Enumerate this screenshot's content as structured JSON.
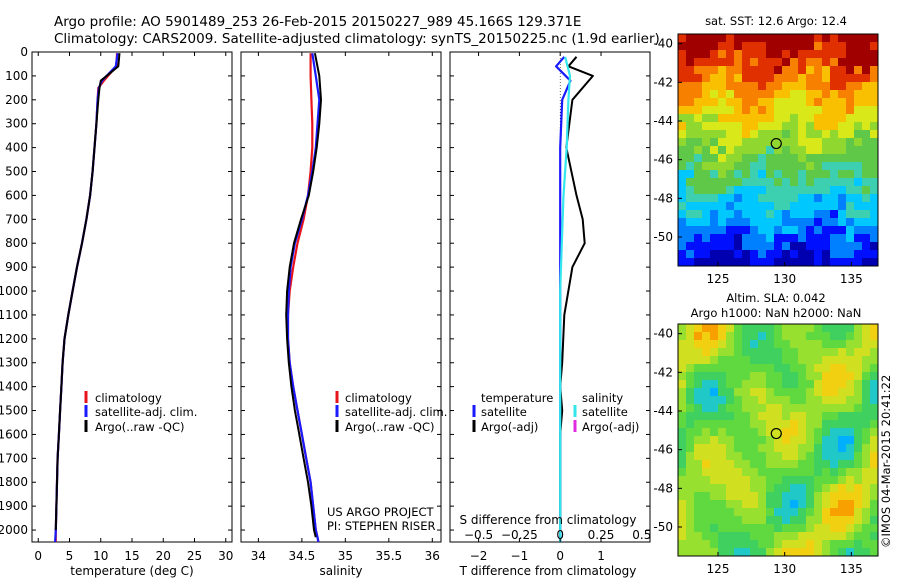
{
  "header": {
    "line1": "Argo profile: AO 5901489_253 26-Feb-2015 20150227_989 45.166S 129.371E",
    "line2": "Climatology: CARS2009. Satellite-adjusted climatology: synTS_20150225.nc (1.9d earlier)"
  },
  "credit": {
    "project": "US ARGO PROJECT",
    "pi": "PI: STEPHEN RISER",
    "stamp": "©IMOS 04-Mar-2015 20:41:22"
  },
  "colors": {
    "climatology": "#e8141c",
    "satellite": "#1a1aff",
    "argo": "#000000",
    "salinity_satellite": "#33e6ee",
    "salinity_argo": "#e02de0"
  },
  "legend_profile": {
    "items": [
      {
        "label": "climatology",
        "color_key": "climatology"
      },
      {
        "label": "satellite-adj. clim.",
        "color_key": "satellite"
      },
      {
        "label": "Argo(..raw -QC)",
        "color_key": "argo"
      }
    ]
  },
  "legend_diff": {
    "temperature_header": "temperature",
    "salinity_header": "salinity",
    "temperature_items": [
      {
        "label": "satellite",
        "color_key": "satellite"
      },
      {
        "label": "Argo(-adj)",
        "color_key": "argo"
      }
    ],
    "salinity_items": [
      {
        "label": "satellite",
        "color_key": "salinity_satellite"
      },
      {
        "label": "Argo(-adj)",
        "color_key": "salinity_argo"
      }
    ]
  },
  "maps": {
    "sst_title": "sat. SST: 12.6 Argo: 12.4",
    "sla_title1": "Altim. SLA: 0.042",
    "sla_title2": "Argo h1000: NaN h2000: NaN",
    "lat_ticks": [
      -40,
      -42,
      -44,
      -46,
      -48,
      -50
    ],
    "lon_ticks": [
      125,
      130,
      135
    ],
    "lon_range": [
      122,
      137
    ],
    "lat_range": [
      -51.5,
      -39.5
    ],
    "argo_position": {
      "lon": 129.371,
      "lat": -45.166
    }
  },
  "chart_data": [
    {
      "type": "line",
      "panel": "temperature",
      "xlabel": "temperature (deg C)",
      "ylabel": "",
      "xlim": [
        -1,
        31
      ],
      "ylim": [
        2050,
        0
      ],
      "xticks": [
        0,
        5,
        10,
        15,
        20,
        25,
        30
      ],
      "yticks": [
        0,
        100,
        200,
        300,
        400,
        500,
        600,
        700,
        800,
        900,
        1000,
        1100,
        1200,
        1300,
        1400,
        1500,
        1600,
        1700,
        1800,
        1900,
        2000
      ],
      "series": [
        {
          "name": "climatology",
          "color_key": "climatology",
          "x": [
            12.6,
            12.5,
            10.5,
            9.6,
            9.5,
            9.3,
            9.0,
            8.7,
            8.3,
            7.7,
            7.0,
            6.2,
            5.5,
            4.8,
            4.2,
            3.9,
            3.7,
            3.5,
            3.3,
            3.1,
            3.0,
            2.9,
            2.8,
            2.8
          ],
          "y": [
            5,
            60,
            120,
            150,
            200,
            300,
            400,
            500,
            600,
            700,
            800,
            900,
            1000,
            1100,
            1200,
            1300,
            1400,
            1500,
            1600,
            1700,
            1800,
            1900,
            2000,
            2050
          ]
        },
        {
          "name": "satellite-adj. clim.",
          "color_key": "satellite",
          "x": [
            12.7,
            12.4,
            10.2,
            9.7,
            9.5,
            9.3,
            9.0,
            8.7,
            8.3,
            7.7,
            7.0,
            6.2,
            5.5,
            4.8,
            4.2,
            3.9,
            3.7,
            3.5,
            3.3,
            3.1,
            3.0,
            2.9,
            2.8,
            2.7
          ],
          "y": [
            5,
            60,
            120,
            150,
            200,
            300,
            400,
            500,
            600,
            700,
            800,
            900,
            1000,
            1100,
            1200,
            1300,
            1400,
            1500,
            1600,
            1700,
            1800,
            1900,
            2000,
            2050
          ]
        },
        {
          "name": "Argo(..raw -QC)",
          "color_key": "argo",
          "x": [
            13.0,
            12.8,
            10.0,
            9.8,
            9.6,
            9.3,
            9.0,
            8.7,
            8.3,
            7.7,
            7.0,
            6.2,
            5.5,
            4.8,
            4.2,
            3.9,
            3.7,
            3.5,
            3.3,
            3.1,
            3.0,
            2.9,
            2.8
          ],
          "y": [
            5,
            60,
            120,
            150,
            200,
            300,
            400,
            500,
            600,
            700,
            800,
            900,
            1000,
            1100,
            1200,
            1300,
            1400,
            1500,
            1600,
            1700,
            1800,
            1900,
            2000
          ]
        }
      ]
    },
    {
      "type": "line",
      "panel": "salinity",
      "xlabel": "salinity",
      "ylabel": "",
      "xlim": [
        33.8,
        36.1
      ],
      "ylim": [
        2050,
        0
      ],
      "xticks": [
        34,
        34.5,
        35,
        35.5,
        36
      ],
      "xtick_labels": [
        "34",
        "34.5",
        "35",
        "35.5",
        "36"
      ],
      "series": [
        {
          "name": "climatology",
          "color_key": "climatology",
          "x": [
            34.6,
            34.6,
            34.61,
            34.62,
            34.62,
            34.6,
            34.57,
            34.52,
            34.45,
            34.4,
            34.36,
            34.34,
            34.34,
            34.36,
            34.4,
            34.45,
            34.5,
            34.55,
            34.6,
            34.63,
            34.66,
            34.68,
            34.69
          ],
          "y": [
            5,
            100,
            200,
            300,
            400,
            500,
            600,
            700,
            800,
            900,
            1000,
            1100,
            1200,
            1300,
            1400,
            1500,
            1600,
            1700,
            1800,
            1900,
            2000,
            2030,
            2050
          ]
        },
        {
          "name": "satellite-adj. clim.",
          "color_key": "satellite",
          "x": [
            34.62,
            34.66,
            34.7,
            34.68,
            34.66,
            34.62,
            34.57,
            34.5,
            34.42,
            34.37,
            34.35,
            34.34,
            34.34,
            34.36,
            34.4,
            34.45,
            34.5,
            34.55,
            34.6,
            34.63,
            34.66,
            34.68,
            34.69
          ],
          "y": [
            5,
            100,
            200,
            300,
            400,
            500,
            600,
            700,
            800,
            900,
            1000,
            1100,
            1200,
            1300,
            1400,
            1500,
            1600,
            1700,
            1800,
            1900,
            2000,
            2030,
            2050
          ]
        },
        {
          "name": "Argo(..raw -QC)",
          "color_key": "argo",
          "x": [
            34.65,
            34.7,
            34.72,
            34.7,
            34.67,
            34.63,
            34.58,
            34.49,
            34.41,
            34.36,
            34.33,
            34.32,
            34.33,
            34.35,
            34.38,
            34.42,
            34.47,
            34.52,
            34.57,
            34.61,
            34.64,
            34.66
          ],
          "y": [
            5,
            100,
            200,
            300,
            400,
            500,
            600,
            700,
            800,
            900,
            1000,
            1100,
            1200,
            1300,
            1400,
            1500,
            1600,
            1700,
            1800,
            1900,
            2000,
            2030
          ]
        }
      ]
    },
    {
      "type": "line",
      "panel": "difference",
      "xlabel": "T difference from climatology",
      "x2label": "S difference from climatology",
      "xlim": [
        -2.7,
        2.2
      ],
      "ylim": [
        2050,
        0
      ],
      "xticks": [
        -2,
        -1,
        0,
        1
      ],
      "xtick_labels": [
        "−2",
        "−1",
        "0",
        "1"
      ],
      "x2lim": [
        -0.675,
        0.55
      ],
      "x2ticks": [
        -0.5,
        -0.25,
        0,
        0.25,
        0.5
      ],
      "x2tick_labels": [
        "−0.5",
        "−0.25",
        "0",
        "0.25",
        "0.5"
      ],
      "series": [
        {
          "name": "temperature satellite",
          "color_key": "satellite",
          "x": [
            0.1,
            -0.1,
            0.25,
            0.05,
            0.0,
            0.0,
            0.0,
            0.0,
            0.0,
            0.0,
            0.0,
            0.0,
            0.0,
            0.0,
            0.0,
            0.0
          ],
          "y": [
            20,
            60,
            120,
            200,
            400,
            600,
            800,
            1000,
            1200,
            1300,
            1400,
            1500,
            1600,
            1800,
            2000,
            2050
          ]
        },
        {
          "name": "temperature Argo(-adj)",
          "color_key": "argo",
          "x": [
            0.4,
            0.2,
            0.8,
            0.3,
            0.15,
            0.4,
            0.55,
            0.6,
            0.3,
            0.1,
            0.05,
            0.0,
            0.05,
            0.0,
            0.0,
            0.0,
            0.0
          ],
          "y": [
            20,
            60,
            100,
            200,
            400,
            600,
            700,
            800,
            900,
            1100,
            1300,
            1400,
            1500,
            1600,
            1800,
            2000,
            2050
          ]
        },
        {
          "name": "salinity satellite",
          "color_key": "salinity_satellite",
          "x2": [
            0.03,
            0.06,
            0.05,
            0.04,
            0.02,
            0.01,
            0.0,
            0.0,
            0.0,
            0.0,
            0.0
          ],
          "y": [
            20,
            100,
            200,
            400,
            600,
            800,
            1000,
            1200,
            1500,
            1800,
            2050
          ]
        }
      ]
    }
  ]
}
